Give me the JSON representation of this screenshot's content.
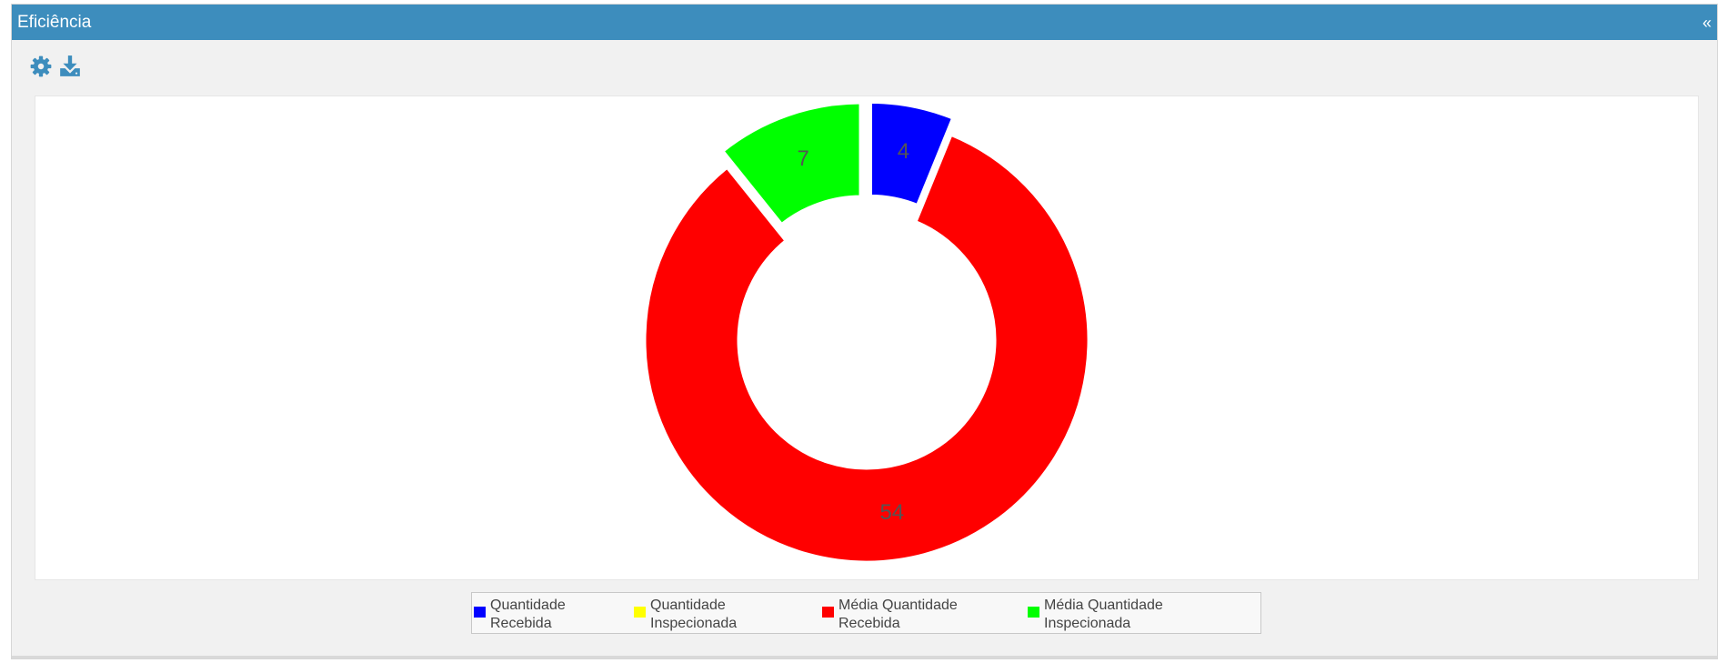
{
  "panel": {
    "title": "Eficiência",
    "collapse_label": "«"
  },
  "toolbar": {
    "icons": [
      "gear-icon",
      "download-icon"
    ],
    "icon_color": "#3d8dbd"
  },
  "theme": {
    "header_color": "#3d8dbd",
    "label_color": "#555555"
  },
  "chart_data": {
    "type": "pie",
    "subtype": "donut",
    "series": [
      {
        "name": "Quantidade Recebida",
        "value": 4,
        "color": "#0000ff"
      },
      {
        "name": "Quantidade Inspecionada",
        "value": 0,
        "color": "#ffff00"
      },
      {
        "name": "Média Quantidade Recebida",
        "value": 54,
        "color": "#ff0000"
      },
      {
        "name": "Média Quantidade Inspecionada",
        "value": 7,
        "color": "#00ff00"
      }
    ],
    "data_labels": [
      "4",
      "",
      "54",
      "7"
    ],
    "legend_position": "bottom-center",
    "exploded_slices": [
      "Quantidade Recebida",
      "Média Quantidade Inspecionada"
    ]
  }
}
